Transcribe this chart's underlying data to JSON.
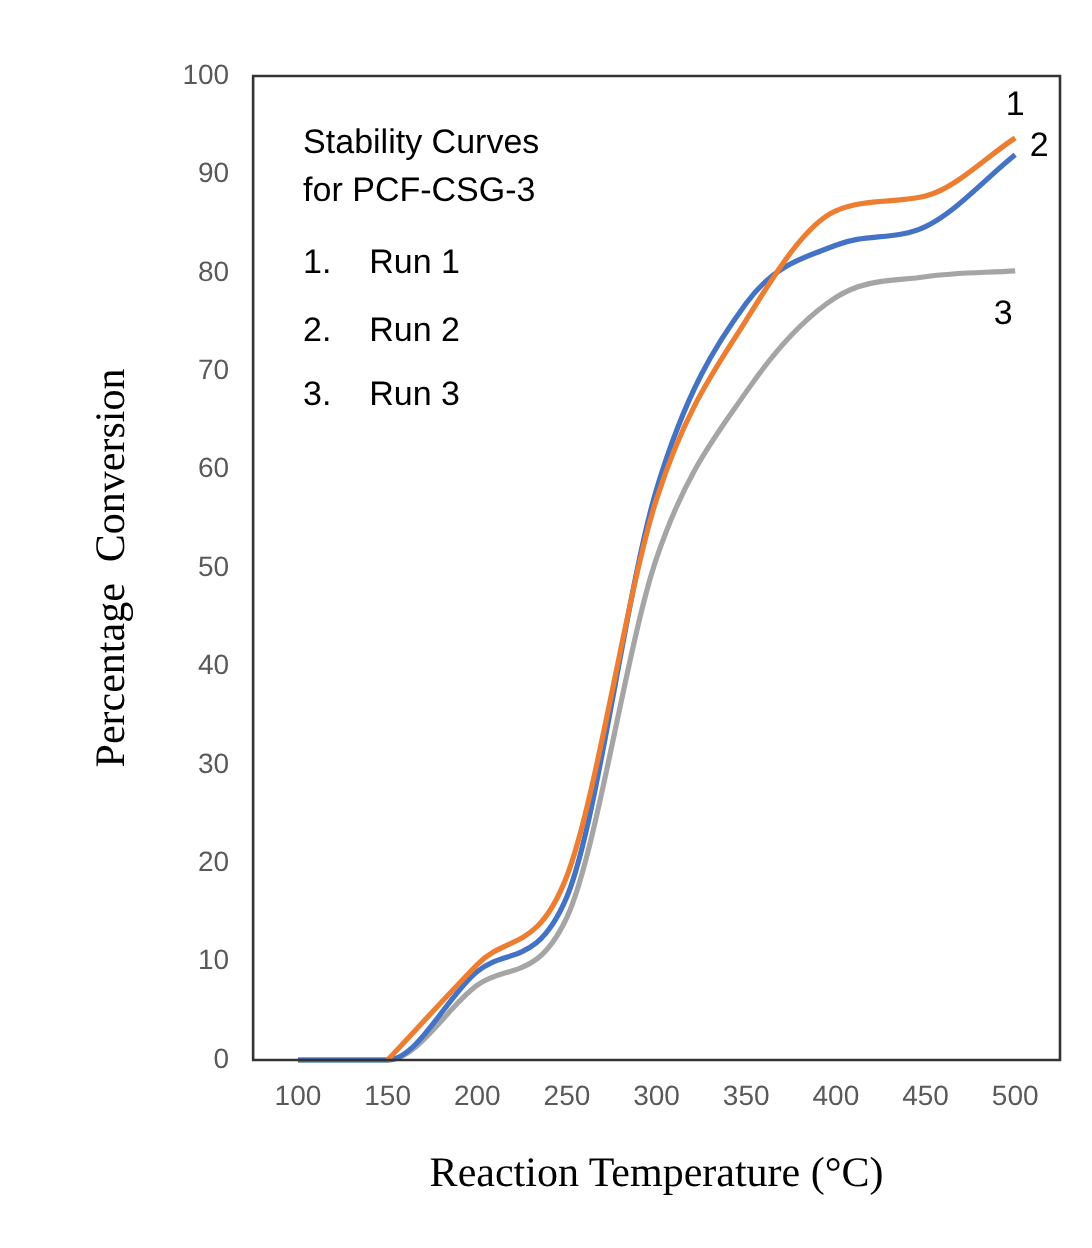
{
  "chart_data": {
    "type": "line",
    "xlabel": "Reaction Temperature (°C)",
    "ylabel": "Percentage  Conversion",
    "x": [
      100,
      150,
      200,
      250,
      300,
      350,
      400,
      450,
      500
    ],
    "series": [
      {
        "color": "#ed7d31",
        "values": [
          null,
          0,
          9.7,
          18.7,
          57,
          75.2,
          86.3,
          87.8,
          93.7
        ]
      },
      {
        "color": "#4472c4",
        "values": [
          0,
          0,
          9,
          16.6,
          58,
          76.9,
          82.8,
          84.7,
          92
        ]
      },
      {
        "color": "#a5a5a5",
        "values": [
          0,
          0,
          7.6,
          14.5,
          51,
          67.9,
          77.5,
          79.6,
          80.2
        ]
      }
    ],
    "xlim": [
      75,
      525
    ],
    "xticks": [
      100,
      150,
      200,
      250,
      300,
      350,
      400,
      450,
      500
    ],
    "ylim": [
      0,
      100
    ],
    "yticks": [
      0,
      10,
      20,
      30,
      40,
      50,
      60,
      70,
      80,
      90,
      100
    ],
    "grid": false,
    "legend": false,
    "marker": "none",
    "line_style": "solid",
    "annotations": [
      "Stability Curves",
      "for PCF-CSG-3",
      "1.    Run 1",
      "2.    Run 2",
      "3.    Run 3",
      "1",
      "2",
      "3"
    ]
  }
}
